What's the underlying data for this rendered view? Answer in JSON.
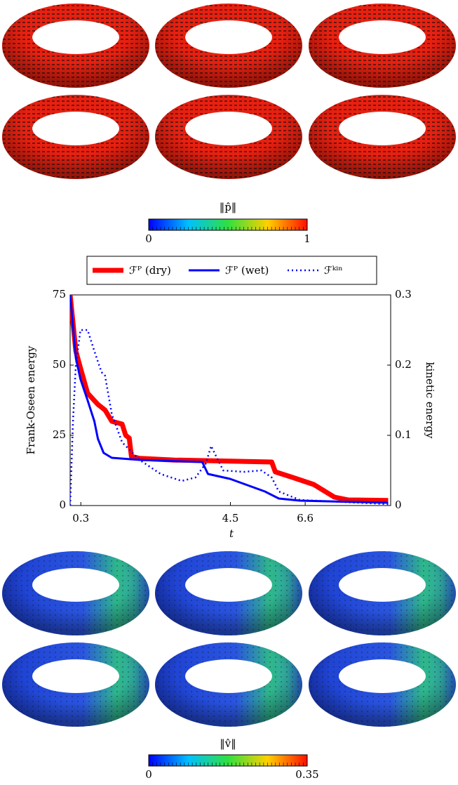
{
  "colorbar_director": {
    "label": "‖p̂‖",
    "lim": [
      0,
      1
    ],
    "ticks": [
      0,
      1
    ]
  },
  "chart_data": {
    "type": "line",
    "x_label": "t",
    "y_label": "Frank-Oseen energy",
    "y2_label": "kinetic energy",
    "xlim": [
      0,
      9
    ],
    "xticks": [
      0.3,
      4.5,
      6.6
    ],
    "ylim": [
      0,
      75
    ],
    "yticks": [
      0,
      25,
      50,
      75
    ],
    "y2lim": [
      0,
      0.3
    ],
    "y2ticks": [
      0,
      0.1,
      0.2,
      0.3
    ],
    "legend": "top",
    "series": [
      {
        "name": "ℱᴾ (dry)",
        "color": "#ff0000",
        "style": "thick",
        "x": [
          0,
          0.16,
          0.29,
          0.49,
          0.78,
          0.98,
          1.17,
          1.46,
          1.56,
          1.66,
          1.72,
          1.95,
          2.93,
          4.49,
          5.66,
          5.76,
          6.25,
          6.84,
          7.42,
          7.81,
          8.93
        ],
        "values": [
          75,
          55,
          49,
          40,
          36,
          34,
          30,
          29,
          25,
          24,
          17.5,
          16.8,
          16.2,
          15.8,
          15.5,
          12,
          10,
          7.5,
          3,
          2,
          1.8
        ]
      },
      {
        "name": "ℱᴾ (wet)",
        "color": "#0000ff",
        "style": "solid",
        "x": [
          0,
          0.16,
          0.29,
          0.49,
          0.68,
          0.78,
          0.94,
          1.17,
          1.95,
          3.71,
          3.87,
          4.49,
          5.47,
          5.86,
          6.45,
          8.93
        ],
        "values": [
          75,
          52.5,
          45,
          37.5,
          30,
          23.75,
          18.75,
          17,
          16.25,
          15.5,
          11.25,
          9.5,
          5,
          2.5,
          1.75,
          1
        ]
      },
      {
        "name": "ℱᵏⁱⁿ",
        "color": "#0000ff",
        "style": "dotted",
        "axis": "y2",
        "x": [
          0,
          0.08,
          0.16,
          0.29,
          0.49,
          0.68,
          0.88,
          0.98,
          1.17,
          1.46,
          1.95,
          2.54,
          3.13,
          3.52,
          3.81,
          3.96,
          4.1,
          4.3,
          4.88,
          5.37,
          5.66,
          5.86,
          6.45,
          8.93
        ],
        "values": [
          0,
          0.12,
          0.2,
          0.25,
          0.25,
          0.22,
          0.19,
          0.185,
          0.13,
          0.09,
          0.065,
          0.045,
          0.035,
          0.04,
          0.06,
          0.085,
          0.07,
          0.05,
          0.048,
          0.05,
          0.04,
          0.02,
          0.008,
          0.002
        ]
      }
    ]
  },
  "colorbar_velocity": {
    "label": "‖v̂‖",
    "lim": [
      0,
      0.35
    ],
    "ticks": [
      0,
      0.35
    ]
  }
}
